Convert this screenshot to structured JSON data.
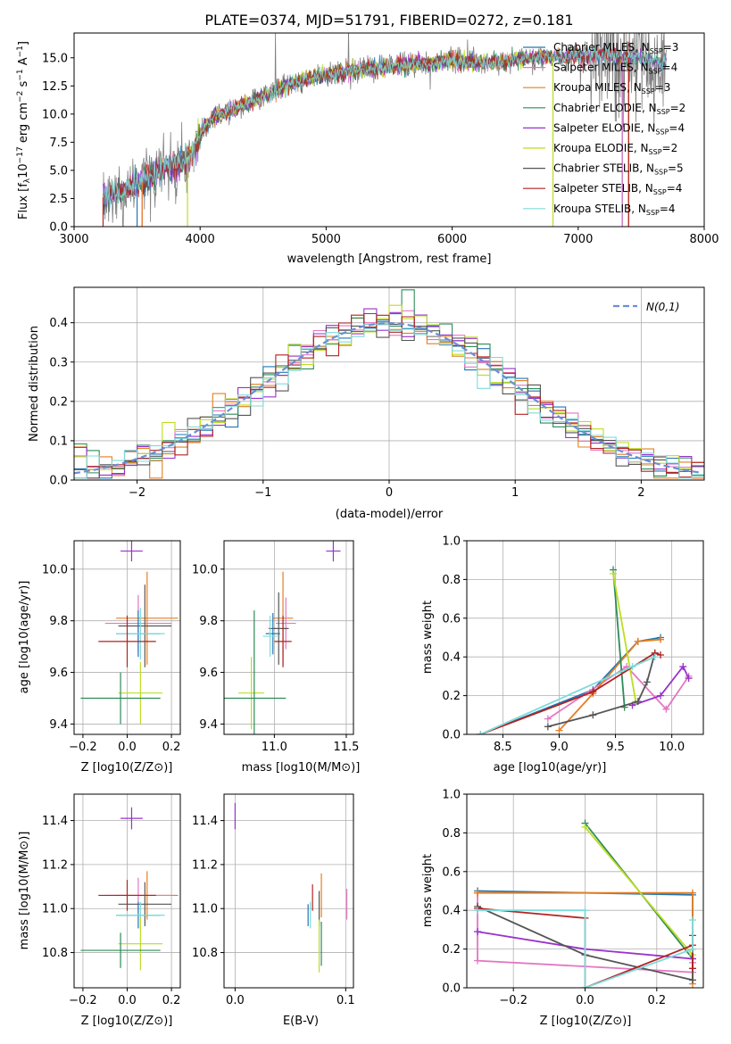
{
  "colors": {
    "Chabrier MILES": "#1f77b4",
    "Salpeter MILES": "#e377c2",
    "Kroupa MILES": "#e67e22",
    "Chabrier ELODIE": "#2e8b57",
    "Salpeter ELODIE": "#9932cc",
    "Kroupa ELODIE": "#bcdd22",
    "Chabrier STELIB": "#555555",
    "Salpeter STELIB": "#b22222",
    "Kroupa STELIB": "#7fdbdb",
    "gauss": "#6a8fd6"
  },
  "chart_data": [
    {
      "id": "spectrum",
      "type": "line",
      "title": "PLATE=0374, MJD=51791, FIBERID=0272, z=0.181",
      "xlabel": "wavelength [Angstrom, rest frame]",
      "ylabel": "Flux [fλ10⁻¹⁷ erg cm⁻² s⁻¹ A⁻¹]",
      "xlim": [
        3000,
        8000
      ],
      "ylim": [
        0,
        17.2
      ],
      "xticks": [
        "3000",
        "4000",
        "5000",
        "6000",
        "7000",
        "8000"
      ],
      "yticks": [
        "0.0",
        "2.5",
        "5.0",
        "7.5",
        "10.0",
        "12.5",
        "15.0"
      ],
      "legend_position": "top-right",
      "legend": [
        {
          "label": "Chabrier MILES",
          "nssp": "3"
        },
        {
          "label": "Salpeter MILES",
          "nssp": "4"
        },
        {
          "label": "Kroupa MILES",
          "nssp": "3"
        },
        {
          "label": "Chabrier ELODIE",
          "nssp": "2"
        },
        {
          "label": "Salpeter ELODIE",
          "nssp": "4"
        },
        {
          "label": "Kroupa ELODIE",
          "nssp": "2"
        },
        {
          "label": "Chabrier STELIB",
          "nssp": "5"
        },
        {
          "label": "Salpeter STELIB",
          "nssp": "4"
        },
        {
          "label": "Kroupa STELIB",
          "nssp": "4"
        }
      ],
      "continuum": [
        [
          3230,
          2.6
        ],
        [
          3400,
          3.3
        ],
        [
          3550,
          4.0
        ],
        [
          3700,
          5.1
        ],
        [
          3850,
          5.6
        ],
        [
          3950,
          6.6
        ],
        [
          4000,
          8.4
        ],
        [
          4100,
          9.7
        ],
        [
          4300,
          10.6
        ],
        [
          4500,
          11.6
        ],
        [
          4700,
          12.5
        ],
        [
          4900,
          13.3
        ],
        [
          5200,
          13.8
        ],
        [
          5500,
          14.2
        ],
        [
          5800,
          14.5
        ],
        [
          6000,
          14.8
        ],
        [
          6300,
          14.5
        ],
        [
          6600,
          15.0
        ],
        [
          6900,
          15.1
        ],
        [
          7200,
          15.3
        ],
        [
          7500,
          14.9
        ],
        [
          7700,
          14.5
        ]
      ],
      "noisy_region": [
        7100,
        7700
      ],
      "edges": [
        {
          "label": "Chabrier MILES",
          "x": [
            3500,
            7350
          ]
        },
        {
          "label": "Salpeter MILES",
          "x": [
            3540,
            7350
          ]
        },
        {
          "label": "Kroupa MILES",
          "x": [
            3540,
            7400
          ]
        },
        {
          "label": "Kroupa ELODIE",
          "x": [
            3900,
            6800
          ]
        },
        {
          "label": "Salpeter STELIB",
          "x": [
            3230,
            7400
          ]
        }
      ]
    },
    {
      "id": "residuals",
      "type": "step",
      "xlabel": "(data-model)/error",
      "ylabel": "Normed distribution",
      "xlim": [
        -2.5,
        2.5
      ],
      "ylim": [
        0,
        0.49
      ],
      "xticks": [
        "−2",
        "−1",
        "0",
        "1",
        "2"
      ],
      "yticks": [
        "0.0",
        "0.1",
        "0.2",
        "0.3",
        "0.4"
      ],
      "bin_width": 0.1,
      "gauss_label": "N(0,1)",
      "legend_position": "top-right"
    },
    {
      "id": "age_z",
      "type": "errorbar",
      "xlabel": "Z [log10(Z/Z⊙)]",
      "ylabel": "age  [log10(age/yr)]",
      "xlim": [
        -0.24,
        0.24
      ],
      "ylim": [
        9.36,
        10.11
      ],
      "xticks": [
        "−0.2",
        "0.0",
        "0.2"
      ],
      "yticks": [
        "9.4",
        "9.6",
        "9.8",
        "10.0"
      ],
      "points": [
        {
          "label": "Salpeter ELODIE",
          "x": 0.02,
          "xerr": 0.05,
          "y": 10.07,
          "yerr": 0.04
        },
        {
          "label": "Kroupa MILES",
          "x": 0.09,
          "xerr": 0.14,
          "y": 9.81,
          "yerr": 0.18
        },
        {
          "label": "Salpeter MILES",
          "x": 0.05,
          "xerr": 0.15,
          "y": 9.79,
          "yerr": 0.11
        },
        {
          "label": "Chabrier STELIB",
          "x": 0.08,
          "xerr": 0.12,
          "y": 9.78,
          "yerr": 0.16
        },
        {
          "label": "Chabrier MILES",
          "x": 0.05,
          "xerr": 0.1,
          "y": 9.75,
          "yerr": 0.09
        },
        {
          "label": "Kroupa STELIB",
          "x": 0.06,
          "xerr": 0.11,
          "y": 9.75,
          "yerr": 0.1
        },
        {
          "label": "Salpeter STELIB",
          "x": 0.0,
          "xerr": 0.13,
          "y": 9.72,
          "yerr": 0.1
        },
        {
          "label": "Kroupa ELODIE",
          "x": 0.06,
          "xerr": 0.1,
          "y": 9.52,
          "yerr": 0.12
        },
        {
          "label": "Chabrier ELODIE",
          "x": -0.03,
          "xerr": 0.18,
          "y": 9.5,
          "yerr": 0.1
        }
      ]
    },
    {
      "id": "age_mass",
      "type": "errorbar",
      "xlabel": "mass [log10(M/M⊙)]",
      "ylabel": "",
      "xlim": [
        10.65,
        11.55
      ],
      "ylim": [
        9.36,
        10.11
      ],
      "xticks": [
        "11.0",
        "11.5"
      ],
      "yticks": [
        "9.4",
        "9.6",
        "9.8",
        "10.0"
      ],
      "points": [
        {
          "label": "Salpeter ELODIE",
          "x": 11.41,
          "xerr": 0.05,
          "y": 10.07,
          "yerr": 0.04
        },
        {
          "label": "Kroupa MILES",
          "x": 11.06,
          "xerr": 0.07,
          "y": 9.81,
          "yerr": 0.18
        },
        {
          "label": "Salpeter MILES",
          "x": 11.08,
          "xerr": 0.07,
          "y": 9.79,
          "yerr": 0.1
        },
        {
          "label": "Chabrier STELIB",
          "x": 11.03,
          "xerr": 0.07,
          "y": 9.77,
          "yerr": 0.14
        },
        {
          "label": "Chabrier MILES",
          "x": 10.99,
          "xerr": 0.05,
          "y": 9.75,
          "yerr": 0.08
        },
        {
          "label": "Kroupa STELIB",
          "x": 10.97,
          "xerr": 0.05,
          "y": 9.74,
          "yerr": 0.08
        },
        {
          "label": "Salpeter STELIB",
          "x": 11.06,
          "xerr": 0.06,
          "y": 9.72,
          "yerr": 0.1
        },
        {
          "label": "Kroupa ELODIE",
          "x": 10.84,
          "xerr": 0.09,
          "y": 9.52,
          "yerr": 0.14
        },
        {
          "label": "Chabrier ELODIE",
          "x": 10.86,
          "xerr": 0.22,
          "y": 9.5,
          "yerr": 0.34
        }
      ]
    },
    {
      "id": "weight_age",
      "type": "line",
      "xlabel": "age  [log10(age/yr)]",
      "ylabel": "mass weight",
      "xlim": [
        8.18,
        10.28
      ],
      "ylim": [
        0,
        1.0
      ],
      "xticks": [
        "8.5",
        "9.0",
        "9.5",
        "10.0"
      ],
      "yticks": [
        "0.0",
        "0.2",
        "0.4",
        "0.6",
        "0.8",
        "1.0"
      ],
      "series": [
        {
          "label": "Chabrier MILES",
          "x": [
            8.3,
            9.3,
            9.7,
            9.9
          ],
          "y": [
            0.0,
            0.23,
            0.48,
            0.5
          ]
        },
        {
          "label": "Salpeter MILES",
          "x": [
            8.9,
            9.6,
            9.95,
            10.15
          ],
          "y": [
            0.08,
            0.35,
            0.13,
            0.3
          ]
        },
        {
          "label": "Kroupa MILES",
          "x": [
            9.0,
            9.3,
            9.7,
            9.9
          ],
          "y": [
            0.02,
            0.21,
            0.48,
            0.49
          ]
        },
        {
          "label": "Chabrier ELODIE",
          "x": [
            9.48,
            9.58
          ],
          "y": [
            0.85,
            0.14
          ]
        },
        {
          "label": "Salpeter ELODIE",
          "x": [
            9.65,
            9.9,
            10.1,
            10.15
          ],
          "y": [
            0.15,
            0.2,
            0.35,
            0.29
          ]
        },
        {
          "label": "Kroupa ELODIE",
          "x": [
            9.48,
            9.68
          ],
          "y": [
            0.83,
            0.17
          ]
        },
        {
          "label": "Chabrier STELIB",
          "x": [
            8.9,
            9.3,
            9.7,
            9.78,
            9.85
          ],
          "y": [
            0.04,
            0.1,
            0.17,
            0.27,
            0.42
          ]
        },
        {
          "label": "Salpeter STELIB",
          "x": [
            8.3,
            9.3,
            9.85,
            9.9
          ],
          "y": [
            0.0,
            0.22,
            0.42,
            0.41
          ]
        },
        {
          "label": "Kroupa STELIB",
          "x": [
            8.3,
            9.65,
            9.85
          ],
          "y": [
            0.0,
            0.35,
            0.4
          ]
        }
      ]
    },
    {
      "id": "mass_z",
      "type": "errorbar",
      "xlabel": "Z [log10(Z/Z⊙)]",
      "ylabel": "mass [log10(M/M⊙)]",
      "xlim": [
        -0.24,
        0.24
      ],
      "ylim": [
        10.64,
        11.52
      ],
      "xticks": [
        "−0.2",
        "0.0",
        "0.2"
      ],
      "yticks": [
        "10.8",
        "11.0",
        "11.2",
        "11.4"
      ],
      "points": [
        {
          "label": "Salpeter ELODIE",
          "x": 0.02,
          "xerr": 0.05,
          "y": 11.41,
          "yerr": 0.05
        },
        {
          "label": "Kroupa MILES",
          "x": 0.09,
          "xerr": 0.14,
          "y": 11.06,
          "yerr": 0.11
        },
        {
          "label": "Salpeter MILES",
          "x": 0.05,
          "xerr": 0.15,
          "y": 11.06,
          "yerr": 0.08
        },
        {
          "label": "Salpeter STELIB",
          "x": 0.0,
          "xerr": 0.13,
          "y": 11.06,
          "yerr": 0.07
        },
        {
          "label": "Chabrier STELIB",
          "x": 0.08,
          "xerr": 0.12,
          "y": 11.02,
          "yerr": 0.1
        },
        {
          "label": "Chabrier MILES",
          "x": 0.05,
          "xerr": 0.1,
          "y": 10.97,
          "yerr": 0.06
        },
        {
          "label": "Kroupa STELIB",
          "x": 0.06,
          "xerr": 0.11,
          "y": 10.97,
          "yerr": 0.06
        },
        {
          "label": "Kroupa ELODIE",
          "x": 0.06,
          "xerr": 0.1,
          "y": 10.84,
          "yerr": 0.12
        },
        {
          "label": "Chabrier ELODIE",
          "x": -0.03,
          "xerr": 0.18,
          "y": 10.81,
          "yerr": 0.08
        }
      ]
    },
    {
      "id": "mass_ebv",
      "type": "errorbar",
      "xlabel": "E(B-V)",
      "ylabel": "",
      "xlim": [
        -0.01,
        0.107
      ],
      "ylim": [
        10.64,
        11.52
      ],
      "xticks": [
        "0.0",
        "0.1"
      ],
      "yticks": [
        "10.8",
        "11.0",
        "11.2",
        "11.4"
      ],
      "points": [
        {
          "label": "Salpeter ELODIE",
          "x": 0.0,
          "xerr": 0.0,
          "y": 11.42,
          "yerr": 0.06
        },
        {
          "label": "Salpeter STELIB",
          "x": 0.07,
          "xerr": 0.0,
          "y": 11.05,
          "yerr": 0.06
        },
        {
          "label": "Kroupa MILES",
          "x": 0.078,
          "xerr": 0.0,
          "y": 11.06,
          "yerr": 0.1
        },
        {
          "label": "Salpeter MILES",
          "x": 0.101,
          "xerr": 0.0,
          "y": 11.02,
          "yerr": 0.07
        },
        {
          "label": "Chabrier STELIB",
          "x": 0.076,
          "xerr": 0.0,
          "y": 11.0,
          "yerr": 0.08
        },
        {
          "label": "Chabrier MILES",
          "x": 0.066,
          "xerr": 0.0,
          "y": 10.97,
          "yerr": 0.05
        },
        {
          "label": "Kroupa STELIB",
          "x": 0.068,
          "xerr": 0.0,
          "y": 10.97,
          "yerr": 0.06
        },
        {
          "label": "Kroupa ELODIE",
          "x": 0.076,
          "xerr": 0.0,
          "y": 10.83,
          "yerr": 0.12
        },
        {
          "label": "Chabrier ELODIE",
          "x": 0.078,
          "xerr": 0.0,
          "y": 10.84,
          "yerr": 0.1
        }
      ]
    },
    {
      "id": "weight_z",
      "type": "line",
      "xlabel": "Z [log10(Z/Z⊙)]",
      "ylabel": "mass weight",
      "xlim": [
        -0.33,
        0.33
      ],
      "ylim": [
        0,
        1.0
      ],
      "xticks": [
        "−0.2",
        "0.0",
        "0.2"
      ],
      "yticks": [
        "0.0",
        "0.2",
        "0.4",
        "0.6",
        "0.8",
        "1.0"
      ],
      "series": [
        {
          "label": "Chabrier MILES",
          "x": [
            -0.3,
            0.3,
            0.3
          ],
          "y": [
            0.5,
            0.48,
            0.2
          ]
        },
        {
          "label": "Salpeter MILES",
          "x": [
            -0.3,
            -0.3,
            0.3,
            0.3
          ],
          "y": [
            0.49,
            0.14,
            0.08,
            0.13
          ]
        },
        {
          "label": "Kroupa MILES",
          "x": [
            -0.3,
            0.3,
            0.3
          ],
          "y": [
            0.49,
            0.49,
            0.02
          ]
        },
        {
          "label": "Chabrier ELODIE",
          "x": [
            0.0,
            0.3
          ],
          "y": [
            0.85,
            0.15
          ]
        },
        {
          "label": "Salpeter ELODIE",
          "x": [
            -0.3,
            0.0,
            0.3
          ],
          "y": [
            0.29,
            0.2,
            0.15
          ]
        },
        {
          "label": "Kroupa ELODIE",
          "x": [
            0.0,
            0.3
          ],
          "y": [
            0.83,
            0.17
          ]
        },
        {
          "label": "Chabrier STELIB",
          "x": [
            -0.3,
            0.0,
            0.3,
            0.3
          ],
          "y": [
            0.42,
            0.17,
            0.04,
            0.27
          ]
        },
        {
          "label": "Salpeter STELIB",
          "x": [
            -0.3,
            0.0,
            0.0,
            0.3,
            0.3
          ],
          "y": [
            0.41,
            0.36,
            0.0,
            0.22,
            0.1
          ]
        },
        {
          "label": "Kroupa STELIB",
          "x": [
            -0.3,
            0.0,
            0.0,
            0.3,
            0.3
          ],
          "y": [
            0.4,
            0.4,
            0.0,
            0.2,
            0.35
          ]
        }
      ]
    }
  ]
}
